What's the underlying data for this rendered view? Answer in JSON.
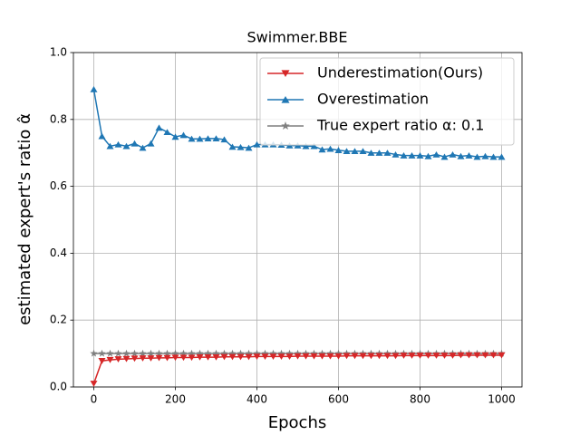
{
  "chart_data": {
    "type": "line",
    "title": "Swimmer.BBE",
    "xlabel": "Epochs",
    "ylabel": "estimated expert's ratio α̂",
    "x": [
      0,
      20,
      40,
      60,
      80,
      100,
      120,
      140,
      160,
      180,
      200,
      220,
      240,
      260,
      280,
      300,
      320,
      340,
      360,
      380,
      400,
      420,
      440,
      460,
      480,
      500,
      520,
      540,
      560,
      580,
      600,
      620,
      640,
      660,
      680,
      700,
      720,
      740,
      760,
      780,
      800,
      820,
      840,
      860,
      880,
      900,
      920,
      940,
      960,
      980,
      1000
    ],
    "series": [
      {
        "name": "Underestimation(Ours)",
        "color": "#d62728",
        "marker": "v",
        "values": [
          0.01,
          0.078,
          0.081,
          0.083,
          0.084,
          0.085,
          0.086,
          0.086,
          0.087,
          0.087,
          0.088,
          0.088,
          0.088,
          0.089,
          0.089,
          0.089,
          0.09,
          0.09,
          0.09,
          0.09,
          0.091,
          0.091,
          0.091,
          0.091,
          0.091,
          0.092,
          0.092,
          0.092,
          0.092,
          0.092,
          0.092,
          0.093,
          0.093,
          0.093,
          0.093,
          0.093,
          0.093,
          0.093,
          0.094,
          0.094,
          0.094,
          0.094,
          0.094,
          0.094,
          0.094,
          0.095,
          0.095,
          0.095,
          0.095,
          0.095,
          0.095
        ]
      },
      {
        "name": "Overestimation",
        "color": "#1f77b4",
        "marker": "^",
        "values": [
          0.89,
          0.75,
          0.72,
          0.725,
          0.72,
          0.728,
          0.715,
          0.728,
          0.775,
          0.762,
          0.748,
          0.753,
          0.742,
          0.742,
          0.743,
          0.743,
          0.74,
          0.718,
          0.717,
          0.715,
          0.725,
          0.725,
          0.725,
          0.724,
          0.722,
          0.722,
          0.72,
          0.72,
          0.71,
          0.712,
          0.708,
          0.705,
          0.705,
          0.705,
          0.7,
          0.7,
          0.7,
          0.695,
          0.692,
          0.692,
          0.692,
          0.69,
          0.695,
          0.688,
          0.695,
          0.69,
          0.692,
          0.688,
          0.69,
          0.688,
          0.688
        ]
      },
      {
        "name": "True expert ratio α: 0.1",
        "color": "#7f7f7f",
        "marker": "*",
        "values": [
          0.1,
          0.1,
          0.1,
          0.1,
          0.1,
          0.1,
          0.1,
          0.1,
          0.1,
          0.1,
          0.1,
          0.1,
          0.1,
          0.1,
          0.1,
          0.1,
          0.1,
          0.1,
          0.1,
          0.1,
          0.1,
          0.1,
          0.1,
          0.1,
          0.1,
          0.1,
          0.1,
          0.1,
          0.1,
          0.1,
          0.1,
          0.1,
          0.1,
          0.1,
          0.1,
          0.1,
          0.1,
          0.1,
          0.1,
          0.1,
          0.1,
          0.1,
          0.1,
          0.1,
          0.1,
          0.1,
          0.1,
          0.1,
          0.1,
          0.1,
          0.1
        ]
      }
    ],
    "xlim": [
      -50,
      1050
    ],
    "ylim": [
      0,
      1
    ],
    "xticks": [
      0,
      200,
      400,
      600,
      800,
      1000
    ],
    "yticks": [
      {
        "value": 0,
        "label": "0.0"
      },
      {
        "value": 0.2,
        "label": "0.2"
      },
      {
        "value": 0.4,
        "label": "0.4"
      },
      {
        "value": 0.6,
        "label": "0.6"
      },
      {
        "value": 0.8,
        "label": "0.8"
      },
      {
        "value": 1,
        "label": "1.0"
      }
    ],
    "grid": true,
    "legend": "upper right"
  }
}
